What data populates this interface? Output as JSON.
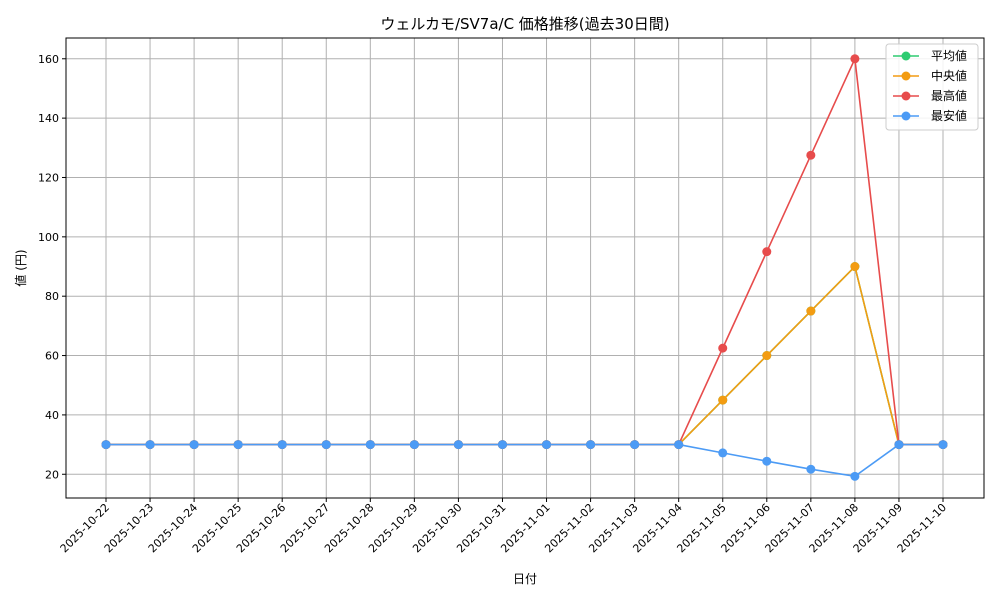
{
  "chart_data": {
    "type": "line",
    "title": "ウェルカモ/SV7a/C 価格推移(過去30日間)",
    "xlabel": "日付",
    "ylabel": "値 (円)",
    "ylim": [
      12,
      167
    ],
    "yticks": [
      20,
      40,
      60,
      80,
      100,
      120,
      140,
      160
    ],
    "grid": true,
    "legend_position": "top-right",
    "categories": [
      "2025-10-22",
      "2025-10-23",
      "2025-10-24",
      "2025-10-25",
      "2025-10-26",
      "2025-10-27",
      "2025-10-28",
      "2025-10-29",
      "2025-10-30",
      "2025-10-31",
      "2025-11-01",
      "2025-11-02",
      "2025-11-03",
      "2025-11-04",
      "2025-11-05",
      "2025-11-06",
      "2025-11-07",
      "2025-11-08",
      "2025-11-09",
      "2025-11-10"
    ],
    "series": [
      {
        "name": "平均値",
        "color": "#2ecc71",
        "values": [
          30,
          30,
          30,
          30,
          30,
          30,
          30,
          30,
          30,
          30,
          30,
          30,
          30,
          30,
          45,
          60,
          75,
          90,
          30,
          30
        ]
      },
      {
        "name": "中央値",
        "color": "#f39c12",
        "values": [
          30,
          30,
          30,
          30,
          30,
          30,
          30,
          30,
          30,
          30,
          30,
          30,
          30,
          30,
          45,
          60,
          75,
          90,
          30,
          30
        ]
      },
      {
        "name": "最高値",
        "color": "#e74c4c",
        "values": [
          30,
          30,
          30,
          30,
          30,
          30,
          30,
          30,
          30,
          30,
          30,
          30,
          30,
          30,
          62.5,
          95,
          127.5,
          160,
          30,
          30
        ]
      },
      {
        "name": "最安値",
        "color": "#4c9bf5",
        "values": [
          30,
          30,
          30,
          30,
          30,
          30,
          30,
          30,
          30,
          30,
          30,
          30,
          30,
          30,
          27.2,
          24.4,
          21.7,
          19.3,
          30,
          30
        ]
      }
    ]
  }
}
